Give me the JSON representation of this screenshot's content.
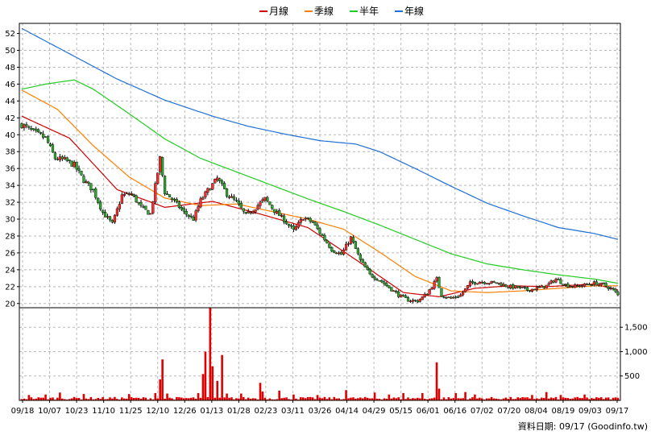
{
  "chart_data": {
    "type": "candlestick",
    "legend": {
      "placement": "top-center",
      "items": [
        {
          "name": "月線",
          "color": "#cc0000"
        },
        {
          "name": "季線",
          "color": "#ff7f00"
        },
        {
          "name": "半年",
          "color": "#22cc22"
        },
        {
          "name": "年線",
          "color": "#1f6fd6"
        }
      ]
    },
    "x_ticks": [
      "09/18",
      "10/07",
      "10/23",
      "11/10",
      "11/25",
      "12/10",
      "12/26",
      "01/13",
      "01/28",
      "02/23",
      "03/11",
      "03/26",
      "04/14",
      "04/29",
      "05/15",
      "06/01",
      "06/16",
      "07/02",
      "07/20",
      "08/04",
      "08/19",
      "09/03",
      "09/17"
    ],
    "price_axis": {
      "ticks": [
        20,
        22,
        24,
        26,
        28,
        30,
        32,
        34,
        36,
        38,
        40,
        42,
        44,
        46,
        48,
        50,
        52
      ],
      "range": [
        19.5,
        53.2
      ],
      "grid": true
    },
    "volume_axis": {
      "ticks": [
        "500",
        "1,000",
        "1,500"
      ],
      "range": [
        0,
        1900
      ],
      "grid": true
    },
    "price_anchors": [
      [
        0,
        41.2
      ],
      [
        5,
        40.3
      ],
      [
        10,
        39.6
      ],
      [
        14,
        37.2
      ],
      [
        18,
        37.0
      ],
      [
        22,
        36.4
      ],
      [
        26,
        34.6
      ],
      [
        30,
        33.4
      ],
      [
        34,
        30.8
      ],
      [
        38,
        29.4
      ],
      [
        42,
        32.8
      ],
      [
        46,
        33.0
      ],
      [
        50,
        31.4
      ],
      [
        54,
        30.6
      ],
      [
        58,
        37.2
      ],
      [
        60,
        33.2
      ],
      [
        64,
        32.1
      ],
      [
        68,
        30.8
      ],
      [
        72,
        30.0
      ],
      [
        75,
        32.2
      ],
      [
        78,
        33.4
      ],
      [
        82,
        34.8
      ],
      [
        86,
        33.0
      ],
      [
        90,
        32.0
      ],
      [
        94,
        30.4
      ],
      [
        98,
        31.4
      ],
      [
        102,
        32.4
      ],
      [
        106,
        31.0
      ],
      [
        110,
        29.9
      ],
      [
        114,
        28.6
      ],
      [
        118,
        30.2
      ],
      [
        122,
        29.6
      ],
      [
        126,
        28.0
      ],
      [
        130,
        26.4
      ],
      [
        134,
        25.8
      ],
      [
        138,
        27.8
      ],
      [
        142,
        25.1
      ],
      [
        146,
        23.4
      ],
      [
        150,
        22.8
      ],
      [
        154,
        21.9
      ],
      [
        158,
        21.0
      ],
      [
        162,
        20.4
      ],
      [
        166,
        20.3
      ],
      [
        170,
        21.2
      ],
      [
        174,
        22.9
      ],
      [
        176,
        21.0
      ],
      [
        180,
        20.6
      ],
      [
        184,
        21.0
      ],
      [
        188,
        22.4
      ],
      [
        192,
        22.6
      ],
      [
        196,
        22.5
      ],
      [
        200,
        22.4
      ],
      [
        204,
        22.0
      ],
      [
        208,
        21.9
      ],
      [
        212,
        21.6
      ],
      [
        216,
        21.8
      ],
      [
        220,
        22.1
      ],
      [
        224,
        22.9
      ],
      [
        228,
        22.2
      ],
      [
        232,
        22.0
      ],
      [
        236,
        22.2
      ],
      [
        240,
        22.4
      ],
      [
        244,
        22.2
      ],
      [
        248,
        21.6
      ],
      [
        250,
        21.0
      ]
    ],
    "volume_spikes": [
      [
        3,
        110
      ],
      [
        10,
        120
      ],
      [
        16,
        160
      ],
      [
        26,
        130
      ],
      [
        45,
        130
      ],
      [
        56,
        150
      ],
      [
        58,
        430
      ],
      [
        59,
        840
      ],
      [
        61,
        140
      ],
      [
        74,
        150
      ],
      [
        76,
        540
      ],
      [
        77,
        1000
      ],
      [
        79,
        1900
      ],
      [
        80,
        700
      ],
      [
        82,
        400
      ],
      [
        84,
        930
      ],
      [
        86,
        140
      ],
      [
        92,
        140
      ],
      [
        100,
        360
      ],
      [
        101,
        180
      ],
      [
        108,
        200
      ],
      [
        114,
        120
      ],
      [
        124,
        110
      ],
      [
        136,
        210
      ],
      [
        148,
        160
      ],
      [
        154,
        120
      ],
      [
        160,
        150
      ],
      [
        168,
        150
      ],
      [
        174,
        780
      ],
      [
        175,
        240
      ],
      [
        182,
        150
      ],
      [
        186,
        170
      ],
      [
        190,
        120
      ],
      [
        214,
        110
      ],
      [
        220,
        170
      ],
      [
        226,
        110
      ],
      [
        236,
        120
      ]
    ],
    "moving_averages": {
      "月線": [
        [
          0,
          42.2
        ],
        [
          20,
          39.6
        ],
        [
          40,
          33.5
        ],
        [
          60,
          31.4
        ],
        [
          80,
          32.1
        ],
        [
          100,
          30.6
        ],
        [
          120,
          29.0
        ],
        [
          140,
          25.2
        ],
        [
          160,
          21.3
        ],
        [
          175,
          20.8
        ],
        [
          190,
          21.8
        ],
        [
          205,
          22.1
        ],
        [
          220,
          22.0
        ],
        [
          240,
          22.3
        ],
        [
          250,
          21.6
        ]
      ],
      "季線": [
        [
          0,
          45.3
        ],
        [
          15,
          43.0
        ],
        [
          30,
          38.7
        ],
        [
          45,
          35.0
        ],
        [
          60,
          32.5
        ],
        [
          75,
          31.6
        ],
        [
          90,
          31.8
        ],
        [
          105,
          30.9
        ],
        [
          120,
          30.0
        ],
        [
          135,
          28.8
        ],
        [
          150,
          26.1
        ],
        [
          165,
          23.2
        ],
        [
          180,
          21.5
        ],
        [
          195,
          21.3
        ],
        [
          210,
          21.5
        ],
        [
          225,
          21.8
        ],
        [
          240,
          22.1
        ],
        [
          250,
          22.1
        ]
      ],
      "半年": [
        [
          0,
          45.4
        ],
        [
          10,
          46.0
        ],
        [
          22,
          46.5
        ],
        [
          30,
          45.4
        ],
        [
          45,
          42.5
        ],
        [
          60,
          39.5
        ],
        [
          75,
          37.2
        ],
        [
          90,
          35.6
        ],
        [
          105,
          34.0
        ],
        [
          120,
          32.4
        ],
        [
          135,
          30.9
        ],
        [
          150,
          29.3
        ],
        [
          165,
          27.6
        ],
        [
          180,
          25.9
        ],
        [
          195,
          24.7
        ],
        [
          210,
          24.0
        ],
        [
          225,
          23.4
        ],
        [
          240,
          22.9
        ],
        [
          250,
          22.4
        ]
      ],
      "年線": [
        [
          0,
          52.6
        ],
        [
          20,
          49.6
        ],
        [
          40,
          46.6
        ],
        [
          60,
          44.1
        ],
        [
          80,
          42.2
        ],
        [
          95,
          41.0
        ],
        [
          110,
          40.1
        ],
        [
          125,
          39.3
        ],
        [
          140,
          38.9
        ],
        [
          150,
          38.0
        ],
        [
          165,
          36.0
        ],
        [
          180,
          33.9
        ],
        [
          195,
          31.9
        ],
        [
          210,
          30.4
        ],
        [
          225,
          29.0
        ],
        [
          240,
          28.3
        ],
        [
          250,
          27.6
        ]
      ]
    }
  },
  "footer": {
    "source": "資料日期: 09/17  (Goodinfo.tw)"
  }
}
